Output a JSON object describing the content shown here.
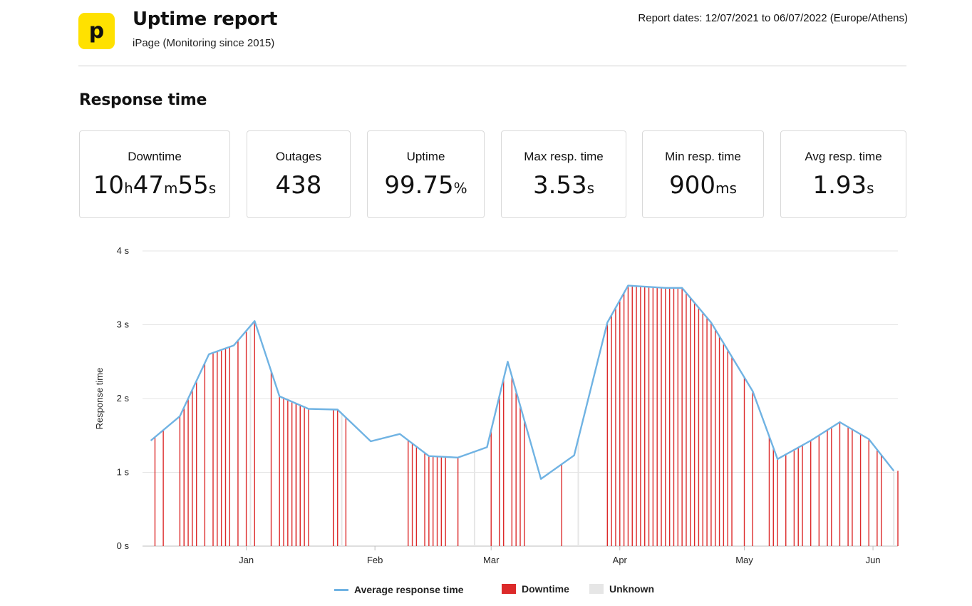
{
  "header": {
    "logo_letter": "p",
    "title": "Uptime report",
    "subtitle": "iPage (Monitoring since 2015)",
    "report_dates": "Report dates: 12/07/2021 to 06/07/2022 (Europe/Athens)"
  },
  "section_title": "Response time",
  "stats": [
    {
      "label": "Downtime",
      "parts": [
        [
          "10",
          "h"
        ],
        [
          "47",
          "m"
        ],
        [
          "55",
          "s"
        ]
      ]
    },
    {
      "label": "Outages",
      "parts": [
        [
          "438",
          ""
        ]
      ]
    },
    {
      "label": "Uptime",
      "parts": [
        [
          "99.75",
          "%"
        ]
      ]
    },
    {
      "label": "Max resp. time",
      "parts": [
        [
          "3.53",
          "s"
        ]
      ]
    },
    {
      "label": "Min resp. time",
      "parts": [
        [
          "900",
          "ms"
        ]
      ]
    },
    {
      "label": "Avg resp. time",
      "parts": [
        [
          "1.93",
          "s"
        ]
      ]
    }
  ],
  "chart_data": {
    "type": "line",
    "ylabel": "Response time",
    "ylim": [
      0,
      4
    ],
    "yticks": [
      "0 s",
      "1 s",
      "2 s",
      "3 s",
      "4 s"
    ],
    "x_range": [
      "2021-12-07",
      "2022-06-07"
    ],
    "x_ticks": [
      {
        "label": "Jan",
        "date": "2022-01-01"
      },
      {
        "label": "Feb",
        "date": "2022-02-01"
      },
      {
        "label": "Mar",
        "date": "2022-03-01"
      },
      {
        "label": "Apr",
        "date": "2022-04-01"
      },
      {
        "label": "May",
        "date": "2022-05-01"
      },
      {
        "label": "Jun",
        "date": "2022-06-01"
      }
    ],
    "grid": true,
    "legend_position": "bottom",
    "colors": {
      "line": "#70b3e3",
      "downtime": "#dc2a2a",
      "unknown": "#e6e6e6"
    },
    "series": [
      {
        "name": "Average response time",
        "points": [
          [
            "2021-12-09",
            1.43
          ],
          [
            "2021-12-16",
            1.76
          ],
          [
            "2021-12-23",
            2.6
          ],
          [
            "2021-12-29",
            2.72
          ],
          [
            "2022-01-03",
            3.05
          ],
          [
            "2022-01-09",
            2.03
          ],
          [
            "2022-01-16",
            1.86
          ],
          [
            "2022-01-23",
            1.85
          ],
          [
            "2022-01-31",
            1.42
          ],
          [
            "2022-02-07",
            1.52
          ],
          [
            "2022-02-14",
            1.22
          ],
          [
            "2022-02-21",
            1.2
          ],
          [
            "2022-02-28",
            1.34
          ],
          [
            "2022-03-05",
            2.5
          ],
          [
            "2022-03-13",
            0.91
          ],
          [
            "2022-03-21",
            1.23
          ],
          [
            "2022-03-29",
            3.03
          ],
          [
            "2022-04-03",
            3.53
          ],
          [
            "2022-04-12",
            3.5
          ],
          [
            "2022-04-16",
            3.5
          ],
          [
            "2022-04-23",
            3.03
          ],
          [
            "2022-05-03",
            2.1
          ],
          [
            "2022-05-09",
            1.18
          ],
          [
            "2022-05-17",
            1.43
          ],
          [
            "2022-05-24",
            1.68
          ],
          [
            "2022-05-31",
            1.45
          ],
          [
            "2022-06-06",
            1.02
          ]
        ]
      },
      {
        "name": "Downtime",
        "dates": [
          "2021-12-10",
          "2021-12-12",
          "2021-12-16",
          "2021-12-17",
          "2021-12-17",
          "2021-12-18",
          "2021-12-19",
          "2021-12-20",
          "2021-12-22",
          "2021-12-24",
          "2021-12-25",
          "2021-12-26",
          "2021-12-27",
          "2021-12-28",
          "2021-12-30",
          "2022-01-01",
          "2022-01-03",
          "2022-01-07",
          "2022-01-09",
          "2022-01-10",
          "2022-01-11",
          "2022-01-12",
          "2022-01-13",
          "2022-01-13",
          "2022-01-14",
          "2022-01-14",
          "2022-01-15",
          "2022-01-16",
          "2022-01-22",
          "2022-01-22",
          "2022-01-23",
          "2022-01-25",
          "2022-02-09",
          "2022-02-10",
          "2022-02-11",
          "2022-02-13",
          "2022-02-14",
          "2022-02-15",
          "2022-02-16",
          "2022-02-17",
          "2022-02-18",
          "2022-02-21",
          "2022-03-01",
          "2022-03-03",
          "2022-03-04",
          "2022-03-06",
          "2022-03-07",
          "2022-03-08",
          "2022-03-09",
          "2022-03-18",
          "2022-03-29",
          "2022-03-30",
          "2022-03-31",
          "2022-04-01",
          "2022-04-02",
          "2022-04-03",
          "2022-04-04",
          "2022-04-05",
          "2022-04-06",
          "2022-04-07",
          "2022-04-08",
          "2022-04-09",
          "2022-04-10",
          "2022-04-11",
          "2022-04-12",
          "2022-04-13",
          "2022-04-14",
          "2022-04-15",
          "2022-04-16",
          "2022-04-17",
          "2022-04-18",
          "2022-04-19",
          "2022-04-20",
          "2022-04-21",
          "2022-04-22",
          "2022-04-23",
          "2022-04-24",
          "2022-04-25",
          "2022-04-26",
          "2022-04-27",
          "2022-04-28",
          "2022-05-01",
          "2022-05-03",
          "2022-05-07",
          "2022-05-08",
          "2022-05-09",
          "2022-05-11",
          "2022-05-13",
          "2022-05-14",
          "2022-05-15",
          "2022-05-17",
          "2022-05-19",
          "2022-05-21",
          "2022-05-22",
          "2022-05-24",
          "2022-05-26",
          "2022-05-27",
          "2022-05-29",
          "2022-05-31",
          "2022-06-02",
          "2022-06-03",
          "2022-06-07"
        ]
      },
      {
        "name": "Unknown",
        "dates": [
          "2022-01-02",
          "2022-01-24",
          "2022-02-25",
          "2022-03-03",
          "2022-03-22",
          "2022-06-06"
        ]
      }
    ]
  }
}
